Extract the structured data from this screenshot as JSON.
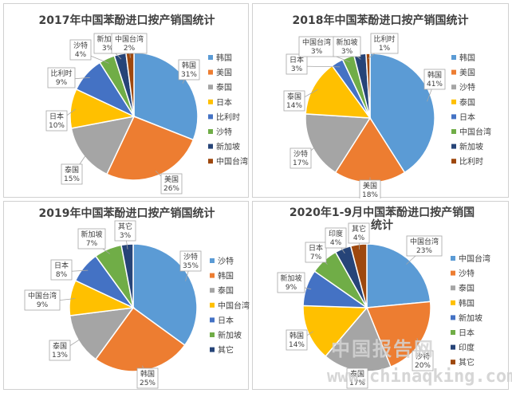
{
  "colors": {
    "blue": "#5b9bd5",
    "orange": "#ed7d31",
    "gray": "#a5a5a5",
    "gold": "#ffc000",
    "darkblue": "#4472c4",
    "green": "#70ad47",
    "navy": "#264478",
    "brown": "#9e480e"
  },
  "watermark": {
    "chinese": "中国报告网",
    "url": "www.chinaqking.com"
  },
  "chart_data": [
    {
      "type": "pie",
      "title": "2017年中国苯酚进口按产销国统计",
      "slices": [
        {
          "name": "韩国",
          "value": 31,
          "label": "31%",
          "color": "#5b9bd5"
        },
        {
          "name": "美国",
          "value": 26,
          "label": "26%",
          "color": "#ed7d31"
        },
        {
          "name": "泰国",
          "value": 15,
          "label": "15%",
          "color": "#a5a5a5"
        },
        {
          "name": "日本",
          "value": 10,
          "label": "10%",
          "color": "#ffc000"
        },
        {
          "name": "比利时",
          "value": 9,
          "label": "9%",
          "color": "#4472c4"
        },
        {
          "name": "沙特",
          "value": 4,
          "label": "4%",
          "color": "#70ad47"
        },
        {
          "name": "新加坡",
          "value": 3,
          "label": "3%",
          "color": "#264478"
        },
        {
          "name": "中国台湾",
          "value": 2,
          "label": "2%",
          "color": "#9e480e"
        }
      ],
      "legend": "right"
    },
    {
      "type": "pie",
      "title": "2018年中国苯酚进口按产销国统计",
      "slices": [
        {
          "name": "韩国",
          "value": 41,
          "label": "41%",
          "color": "#5b9bd5"
        },
        {
          "name": "美国",
          "value": 18,
          "label": "18%",
          "color": "#ed7d31"
        },
        {
          "name": "沙特",
          "value": 17,
          "label": "17%",
          "color": "#a5a5a5"
        },
        {
          "name": "泰国",
          "value": 14,
          "label": "14%",
          "color": "#ffc000"
        },
        {
          "name": "日本",
          "value": 3,
          "label": "3%",
          "color": "#4472c4"
        },
        {
          "name": "中国台湾",
          "value": 3,
          "label": "3%",
          "color": "#70ad47"
        },
        {
          "name": "新加坡",
          "value": 3,
          "label": "3%",
          "color": "#264478"
        },
        {
          "name": "比利时",
          "value": 1,
          "label": "1%",
          "color": "#9e480e"
        }
      ],
      "legend": "right"
    },
    {
      "type": "pie",
      "title": "2019年中国苯酚进口按产销国统计",
      "slices": [
        {
          "name": "沙特",
          "value": 35,
          "label": "35%",
          "color": "#5b9bd5"
        },
        {
          "name": "韩国",
          "value": 25,
          "label": "25%",
          "color": "#ed7d31"
        },
        {
          "name": "泰国",
          "value": 13,
          "label": "13%",
          "color": "#a5a5a5"
        },
        {
          "name": "中国台湾",
          "value": 9,
          "label": "9%",
          "color": "#ffc000"
        },
        {
          "name": "日本",
          "value": 8,
          "label": "8%",
          "color": "#4472c4"
        },
        {
          "name": "新加坡",
          "value": 7,
          "label": "7%",
          "color": "#70ad47"
        },
        {
          "name": "其它",
          "value": 3,
          "label": "3%",
          "color": "#264478"
        }
      ],
      "legend": "right"
    },
    {
      "type": "pie",
      "title": [
        "2020年1-9月中国苯酚进口按产销国",
        "统计"
      ],
      "slices": [
        {
          "name": "中国台湾",
          "value": 23,
          "label": "23%",
          "color": "#5b9bd5"
        },
        {
          "name": "沙特",
          "value": 20,
          "label": "20%",
          "color": "#ed7d31"
        },
        {
          "name": "泰国",
          "value": 17,
          "label": "17%",
          "color": "#a5a5a5"
        },
        {
          "name": "韩国",
          "value": 14,
          "label": "14%",
          "color": "#ffc000"
        },
        {
          "name": "新加坡",
          "value": 9,
          "label": "9%",
          "color": "#4472c4"
        },
        {
          "name": "日本",
          "value": 7,
          "label": "7%",
          "color": "#70ad47"
        },
        {
          "name": "印度",
          "value": 4,
          "label": "4%",
          "color": "#264478"
        },
        {
          "name": "其它",
          "value": 4,
          "label": "4%",
          "color": "#9e480e"
        }
      ],
      "legend": "right"
    }
  ]
}
